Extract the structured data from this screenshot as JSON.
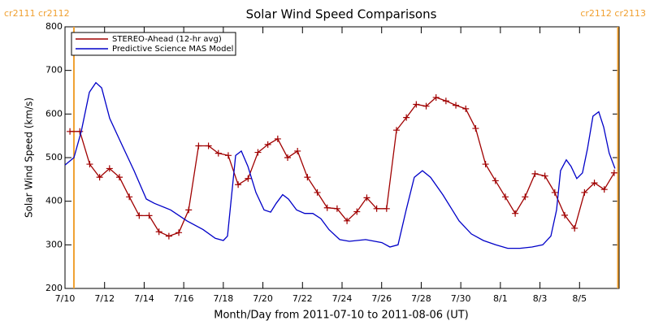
{
  "chart_data": {
    "type": "line",
    "title": "Solar Wind Speed Comparisons",
    "x_label": "Month/Day from 2011-07-10 to 2011-08-06 (UT)",
    "y_label": "Solar Wind Speed (km/s)",
    "xlim": [
      0,
      28
    ],
    "xticks": [
      {
        "value": 0,
        "label": "7/10"
      },
      {
        "value": 2,
        "label": "7/12"
      },
      {
        "value": 4,
        "label": "7/14"
      },
      {
        "value": 6,
        "label": "7/16"
      },
      {
        "value": 8,
        "label": "7/18"
      },
      {
        "value": 10,
        "label": "7/20"
      },
      {
        "value": 12,
        "label": "7/22"
      },
      {
        "value": 14,
        "label": "7/24"
      },
      {
        "value": 16,
        "label": "7/26"
      },
      {
        "value": 18,
        "label": "7/28"
      },
      {
        "value": 20,
        "label": "7/30"
      },
      {
        "value": 22,
        "label": "8/1"
      },
      {
        "value": 24,
        "label": "8/3"
      },
      {
        "value": 26,
        "label": "8/5"
      }
    ],
    "ylim": [
      200,
      800
    ],
    "yticks": [
      200,
      300,
      400,
      500,
      600,
      700,
      800
    ],
    "legend": "upper left",
    "carrington": [
      {
        "x": 0.45,
        "label": "cr2111 cr2112",
        "color": "#f0a030"
      },
      {
        "x": 27.94,
        "label": "cr2112 cr2113",
        "color": "#f0a030"
      }
    ],
    "series": [
      {
        "name": "STEREO-Ahead (12-hr avg)",
        "color": "#a00000",
        "marker": "plus",
        "x": [
          0.25,
          0.75,
          1.25,
          1.75,
          2.25,
          2.75,
          3.25,
          3.75,
          4.25,
          4.75,
          5.25,
          5.75,
          6.25,
          6.75,
          7.25,
          7.75,
          8.25,
          8.75,
          9.25,
          9.75,
          10.25,
          10.75,
          11.25,
          11.75,
          12.25,
          12.75,
          13.25,
          13.75,
          14.25,
          14.75,
          15.25,
          15.75,
          16.25,
          16.75,
          17.25,
          17.75,
          18.25,
          18.75,
          19.25,
          19.75,
          20.25,
          20.75,
          21.25,
          21.75,
          22.25,
          22.75,
          23.25,
          23.75,
          24.25,
          24.75,
          25.25,
          25.75,
          26.25,
          26.75,
          27.25,
          27.75
        ],
        "values": [
          560,
          560,
          485,
          455,
          475,
          455,
          410,
          367,
          367,
          330,
          320,
          328,
          380,
          527,
          527,
          510,
          505,
          438,
          452,
          512,
          530,
          543,
          500,
          515,
          455,
          420,
          385,
          383,
          355,
          376,
          408,
          383,
          383,
          563,
          592,
          622,
          618,
          638,
          630,
          620,
          612,
          567,
          485,
          447,
          410,
          372,
          410,
          463,
          458,
          420,
          368,
          338,
          420,
          442,
          427,
          465
        ]
      },
      {
        "name": "Predictive Science MAS Model",
        "color": "#0000c8",
        "x": [
          0,
          0.45,
          0.82,
          1.23,
          1.56,
          1.85,
          2.26,
          2.87,
          3.49,
          4.11,
          4.52,
          5.34,
          6.16,
          6.98,
          7.59,
          8.0,
          8.21,
          8.62,
          8.91,
          9.24,
          9.65,
          10.06,
          10.39,
          10.67,
          11.0,
          11.29,
          11.7,
          12.11,
          12.52,
          12.93,
          13.34,
          13.88,
          14.37,
          15.19,
          16.01,
          16.42,
          16.83,
          17.24,
          17.65,
          18.06,
          18.47,
          19.09,
          19.5,
          19.91,
          20.53,
          21.14,
          21.76,
          22.37,
          22.99,
          23.6,
          24.14,
          24.55,
          24.84,
          25.04,
          25.33,
          25.57,
          25.86,
          26.15,
          26.4,
          26.68,
          26.97,
          27.22,
          27.5,
          27.79
        ],
        "values": [
          483,
          500,
          560,
          650,
          672,
          660,
          590,
          530,
          470,
          405,
          395,
          380,
          355,
          335,
          315,
          310,
          320,
          505,
          515,
          480,
          420,
          380,
          375,
          395,
          415,
          405,
          380,
          372,
          372,
          360,
          335,
          312,
          308,
          312,
          305,
          295,
          300,
          380,
          455,
          470,
          455,
          415,
          385,
          355,
          325,
          310,
          300,
          292,
          292,
          295,
          300,
          320,
          380,
          470,
          495,
          480,
          452,
          465,
          520,
          595,
          605,
          570,
          510,
          475
        ]
      }
    ]
  }
}
